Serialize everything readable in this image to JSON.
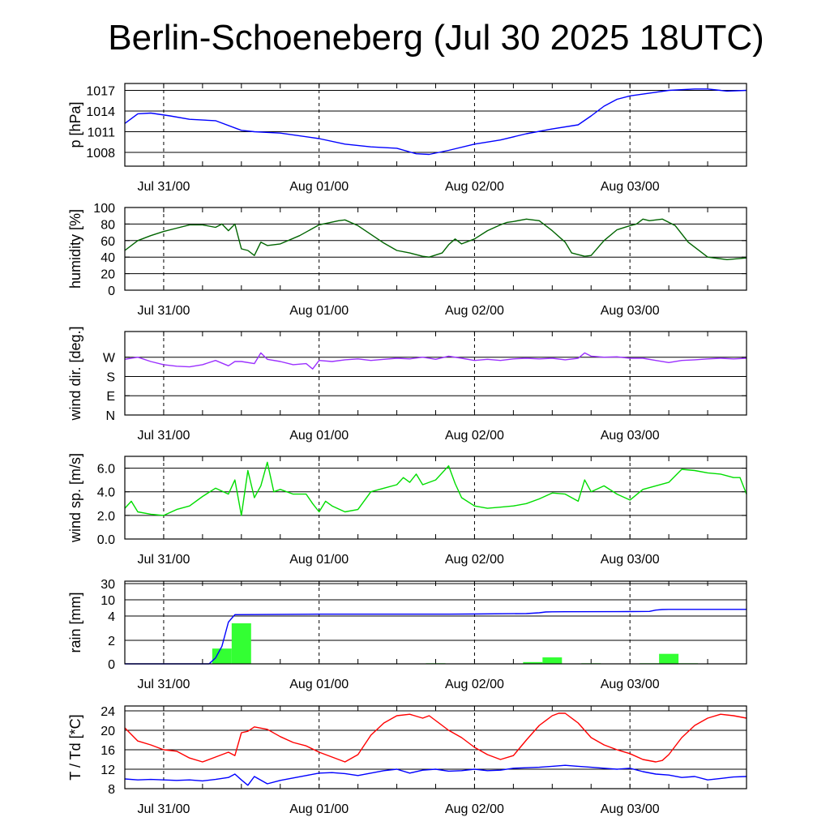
{
  "title": "Berlin-Schoeneberg (Jul 30 2025 18UTC)",
  "chart_data": [
    {
      "type": "line",
      "id": "pressure",
      "ylabel": "p [hPa]",
      "ylim": [
        1006,
        1018
      ],
      "yticks": [
        "1008",
        "1011",
        "1014",
        "1017"
      ],
      "ytick_values": [
        1008,
        1011,
        1014,
        1017
      ],
      "xlim_hours": [
        0,
        96
      ],
      "xtick_labels": [
        "Jul 31/00",
        "Aug 01/00",
        "Aug 02/00",
        "Aug 03/00"
      ],
      "xtick_hours": [
        6,
        30,
        54,
        78
      ],
      "grid": "horizontal at y ticks, dashed vertical at midnight",
      "series": [
        {
          "color": "#0000ff",
          "x": [
            0,
            2,
            4,
            7,
            10,
            14,
            18,
            20,
            24,
            30,
            34,
            38,
            42,
            45,
            47,
            50,
            54,
            58,
            62,
            66,
            70,
            72,
            74,
            76,
            78,
            81,
            84,
            88,
            90,
            93,
            96
          ],
          "y": [
            1012.2,
            1013.6,
            1013.7,
            1013.3,
            1012.8,
            1012.6,
            1011.2,
            1011,
            1010.8,
            1010,
            1009.2,
            1008.8,
            1008.6,
            1007.8,
            1007.7,
            1008.3,
            1009.2,
            1009.8,
            1010.7,
            1011.4,
            1012,
            1013.3,
            1014.7,
            1015.7,
            1016.2,
            1016.6,
            1017,
            1017.2,
            1017.2,
            1016.9,
            1017
          ]
        }
      ]
    },
    {
      "type": "line",
      "id": "humidity",
      "ylabel": "humidity [%]",
      "ylim": [
        0,
        100
      ],
      "yticks": [
        "0",
        "20",
        "40",
        "60",
        "80",
        "100"
      ],
      "ytick_values": [
        0,
        20,
        40,
        60,
        80,
        100
      ],
      "xlim_hours": [
        0,
        96
      ],
      "xtick_labels": [
        "Jul 31/00",
        "Aug 01/00",
        "Aug 02/00",
        "Aug 03/00"
      ],
      "xtick_hours": [
        6,
        30,
        54,
        78
      ],
      "series": [
        {
          "color": "#006400",
          "x": [
            0,
            2,
            4,
            6,
            8,
            10,
            12,
            14,
            15,
            16,
            17,
            18,
            19,
            20,
            21,
            22,
            24,
            27,
            30,
            33,
            34,
            36,
            40,
            42,
            44,
            46,
            47,
            49,
            50,
            51,
            52,
            54,
            56,
            58,
            59,
            60,
            62,
            64,
            66,
            68,
            69,
            71,
            72,
            74,
            76,
            78,
            79,
            80,
            81,
            83,
            85,
            87,
            90,
            93,
            96
          ],
          "y": [
            48,
            60,
            66,
            71,
            75,
            79,
            79,
            76,
            80,
            72,
            80,
            50,
            48,
            42,
            58,
            54,
            56,
            66,
            79,
            84,
            85,
            78,
            57,
            48,
            45,
            41,
            40,
            45,
            55,
            62,
            56,
            62,
            72,
            79,
            82,
            83,
            86,
            84,
            72,
            58,
            45,
            41,
            42,
            60,
            73,
            78,
            80,
            86,
            84,
            86,
            78,
            58,
            40,
            37,
            39
          ]
        }
      ]
    },
    {
      "type": "line",
      "id": "wind_direction",
      "ylabel": "wind dir. [deg.]",
      "ylim": [
        0,
        390
      ],
      "yticks": [
        "N",
        "E",
        "S",
        "W"
      ],
      "ytick_values": [
        0,
        90,
        180,
        270
      ],
      "xlim_hours": [
        0,
        96
      ],
      "xtick_labels": [
        "Jul 31/00",
        "Aug 01/00",
        "Aug 02/00",
        "Aug 03/00"
      ],
      "xtick_hours": [
        6,
        30,
        54,
        78
      ],
      "series": [
        {
          "color": "#9b30ff",
          "x": [
            0,
            2,
            4,
            6,
            8,
            10,
            12,
            14,
            16,
            17,
            18,
            20,
            21,
            22,
            24,
            26,
            28,
            29,
            30,
            32,
            34,
            36,
            38,
            40,
            42,
            44,
            46,
            48,
            50,
            52,
            54,
            56,
            58,
            60,
            62,
            64,
            66,
            68,
            70,
            71,
            72,
            74,
            76,
            78,
            80,
            82,
            84,
            86,
            88,
            90,
            92,
            94,
            96
          ],
          "y": [
            260,
            270,
            250,
            235,
            228,
            225,
            235,
            255,
            230,
            250,
            250,
            240,
            290,
            260,
            250,
            235,
            240,
            215,
            255,
            250,
            258,
            262,
            255,
            260,
            265,
            262,
            270,
            260,
            275,
            265,
            255,
            260,
            255,
            262,
            265,
            262,
            265,
            258,
            265,
            290,
            275,
            270,
            272,
            265,
            265,
            255,
            245,
            255,
            258,
            262,
            265,
            262,
            265
          ]
        }
      ]
    },
    {
      "type": "line",
      "id": "wind_speed",
      "ylabel": "wind sp. [m/s]",
      "ylim": [
        0,
        7
      ],
      "yticks": [
        "0.0",
        "2.0",
        "4.0",
        "6.0"
      ],
      "ytick_values": [
        0,
        2,
        4,
        6
      ],
      "xlim_hours": [
        0,
        96
      ],
      "xtick_labels": [
        "Jul 31/00",
        "Aug 01/00",
        "Aug 02/00",
        "Aug 03/00"
      ],
      "xtick_hours": [
        6,
        30,
        54,
        78
      ],
      "series": [
        {
          "color": "#00dd00",
          "x": [
            0,
            1,
            2,
            4,
            6,
            8,
            10,
            12,
            14,
            16,
            17,
            18,
            19,
            20,
            21,
            22,
            23,
            24,
            26,
            28,
            29,
            30,
            31,
            32,
            34,
            36,
            38,
            40,
            42,
            43,
            44,
            45,
            46,
            48,
            50,
            51,
            52,
            54,
            56,
            58,
            60,
            62,
            64,
            66,
            68,
            70,
            71,
            72,
            74,
            76,
            78,
            80,
            82,
            84,
            86,
            88,
            90,
            92,
            94,
            95,
            96
          ],
          "y": [
            2.6,
            3.2,
            2.3,
            2.1,
            2.0,
            2.5,
            2.8,
            3.6,
            4.3,
            3.8,
            5.0,
            2.0,
            5.8,
            3.5,
            4.5,
            6.5,
            4.0,
            4.2,
            3.8,
            3.8,
            3.0,
            2.3,
            3.2,
            2.8,
            2.3,
            2.5,
            4.0,
            4.3,
            4.6,
            5.2,
            4.8,
            5.5,
            4.6,
            5.0,
            6.2,
            4.7,
            3.5,
            2.8,
            2.6,
            2.7,
            2.8,
            3.0,
            3.4,
            3.9,
            3.8,
            3.2,
            5.0,
            4.0,
            4.5,
            3.8,
            3.3,
            4.2,
            4.5,
            4.8,
            5.9,
            5.8,
            5.6,
            5.5,
            5.2,
            5.2,
            3.8
          ]
        }
      ]
    },
    {
      "type": "bar+line",
      "id": "rain",
      "ylabel": "rain [mm]",
      "yticks": [
        "0",
        "2",
        "4",
        "10",
        "30"
      ],
      "ytick_values": [
        0,
        2,
        4,
        10,
        30
      ],
      "scale": "nonlinear (piecewise)",
      "xlim_hours": [
        0,
        96
      ],
      "xtick_labels": [
        "Jul 31/00",
        "Aug 01/00",
        "Aug 02/00",
        "Aug 03/00"
      ],
      "xtick_hours": [
        6,
        30,
        54,
        78
      ],
      "bars_color": "#33ff33",
      "bars": [
        {
          "x0": 13.5,
          "x1": 16.5,
          "value": 1.3
        },
        {
          "x0": 16.5,
          "x1": 19.5,
          "value": 3.4
        },
        {
          "x0": 46.5,
          "x1": 49.5,
          "value": 0.05
        },
        {
          "x0": 61.5,
          "x1": 64.5,
          "value": 0.15
        },
        {
          "x0": 64.5,
          "x1": 67.5,
          "value": 0.55
        },
        {
          "x0": 70.5,
          "x1": 73.5,
          "value": 0.05
        },
        {
          "x0": 79.5,
          "x1": 82.5,
          "value": 0.05
        },
        {
          "x0": 82.5,
          "x1": 85.5,
          "value": 0.85
        },
        {
          "x0": 85.5,
          "x1": 88.5,
          "value": 0.05
        }
      ],
      "series": [
        {
          "name": "accumulated",
          "color": "#0000ff",
          "x": [
            0,
            13,
            14,
            15,
            16,
            17,
            30,
            50,
            54,
            62,
            64,
            65,
            66,
            68,
            78,
            81,
            82,
            83,
            84,
            96
          ],
          "y": [
            0,
            0,
            0.5,
            1.5,
            3.5,
            4.5,
            4.7,
            4.7,
            4.75,
            4.9,
            5.2,
            5.5,
            5.55,
            5.6,
            5.65,
            5.7,
            6.2,
            6.4,
            6.45,
            6.45
          ]
        }
      ]
    },
    {
      "type": "line",
      "id": "temperature",
      "ylabel": "T / Td [*C]",
      "ylim": [
        8,
        25
      ],
      "yticks": [
        "8",
        "12",
        "16",
        "20",
        "24"
      ],
      "ytick_values": [
        8,
        12,
        16,
        20,
        24
      ],
      "xlim_hours": [
        0,
        96
      ],
      "xtick_labels": [
        "Jul 31/00",
        "Aug 01/00",
        "Aug 02/00",
        "Aug 03/00"
      ],
      "xtick_hours": [
        6,
        30,
        54,
        78
      ],
      "series": [
        {
          "color": "#ff0000",
          "x": [
            0,
            2,
            4,
            6,
            8,
            10,
            12,
            14,
            16,
            17,
            18,
            19,
            20,
            22,
            24,
            26,
            28,
            30,
            32,
            34,
            36,
            38,
            40,
            42,
            44,
            46,
            47,
            48,
            50,
            52,
            54,
            56,
            58,
            60,
            62,
            64,
            66,
            67,
            68,
            70,
            72,
            74,
            76,
            78,
            80,
            82,
            83,
            84,
            86,
            88,
            90,
            92,
            94,
            96
          ],
          "y": [
            20.5,
            17.8,
            17,
            16,
            15.7,
            14.3,
            13.5,
            14.5,
            15.5,
            14.8,
            19.5,
            19.8,
            20.7,
            20.2,
            18.7,
            17.5,
            16.8,
            15.5,
            14.5,
            13.5,
            15,
            19,
            21.5,
            23,
            23.3,
            22.5,
            23,
            22,
            20,
            18.5,
            16.5,
            15,
            14,
            14.8,
            18,
            21,
            23,
            23.5,
            23.5,
            21.5,
            18.5,
            17,
            16,
            15.2,
            14,
            13.5,
            13.8,
            15,
            18.5,
            21,
            22.5,
            23.3,
            23,
            22.5
          ]
        },
        {
          "color": "#0000ff",
          "x": [
            0,
            2,
            4,
            6,
            8,
            10,
            12,
            14,
            16,
            17,
            18,
            19,
            20,
            22,
            24,
            26,
            28,
            30,
            32,
            34,
            36,
            38,
            40,
            42,
            44,
            46,
            48,
            50,
            52,
            54,
            56,
            58,
            60,
            62,
            64,
            66,
            68,
            70,
            72,
            74,
            76,
            78,
            80,
            82,
            84,
            86,
            88,
            90,
            92,
            94,
            96
          ],
          "y": [
            10,
            9.8,
            9.9,
            9.8,
            9.7,
            9.8,
            9.6,
            9.9,
            10.3,
            11,
            9.8,
            8.7,
            10.5,
            9,
            9.7,
            10.2,
            10.7,
            11.2,
            11.3,
            11.1,
            10.7,
            11.2,
            11.7,
            12,
            11.2,
            11.8,
            12,
            11.6,
            11.7,
            12,
            11.7,
            11.8,
            12.2,
            12.3,
            12.4,
            12.6,
            12.8,
            12.6,
            12.4,
            12.2,
            12,
            12.2,
            11.5,
            11,
            10.8,
            10.3,
            10.5,
            9.8,
            10.1,
            10.4,
            10.5
          ]
        }
      ]
    }
  ]
}
